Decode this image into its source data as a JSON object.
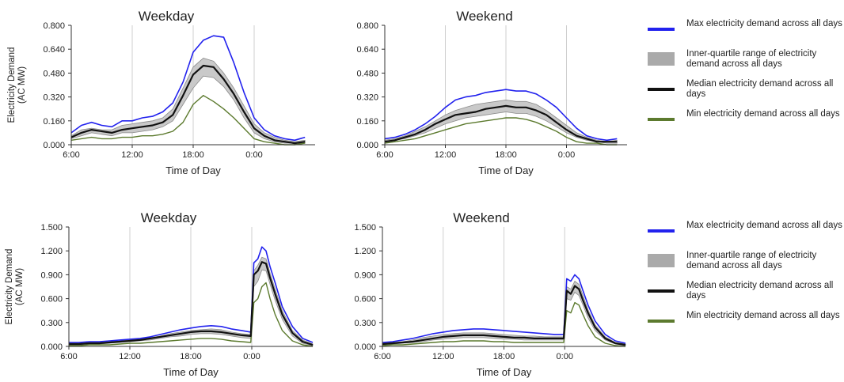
{
  "colors": {
    "max": "#2222ee",
    "iqr": "#c9c9c9",
    "iqr_edge": "#8a8a8a",
    "median": "#111111",
    "min": "#5c7a2e",
    "grid": "#cfcfcf"
  },
  "chart_data": [
    {
      "type": "area",
      "title": "Weekday",
      "ylabel": "Electricity Demand (AC MW)",
      "xlabel": "Time of Day",
      "x_ticks": [
        "6:00",
        "12:00",
        "18:00",
        "0:00"
      ],
      "x_hours": [
        6,
        7,
        8,
        9,
        10,
        11,
        12,
        13,
        14,
        15,
        16,
        17,
        18,
        19,
        20,
        21,
        22,
        23,
        24,
        25,
        26,
        27,
        28,
        29
      ],
      "xlim": [
        6,
        30
      ],
      "ylim": [
        0,
        0.8
      ],
      "y_ticks": [
        "0.000",
        "0.160",
        "0.320",
        "0.480",
        "0.640",
        "0.800"
      ],
      "grid": "vertical at 12:00, 18:00, 0:00",
      "series": [
        {
          "name": "Max electricity demand across all days",
          "values": [
            0.08,
            0.13,
            0.15,
            0.13,
            0.12,
            0.16,
            0.16,
            0.18,
            0.19,
            0.22,
            0.28,
            0.42,
            0.62,
            0.7,
            0.73,
            0.72,
            0.55,
            0.35,
            0.18,
            0.1,
            0.06,
            0.04,
            0.03,
            0.05
          ]
        },
        {
          "name": "Inner-quartile range upper",
          "values": [
            0.06,
            0.1,
            0.11,
            0.1,
            0.1,
            0.13,
            0.14,
            0.15,
            0.16,
            0.18,
            0.24,
            0.38,
            0.52,
            0.58,
            0.56,
            0.48,
            0.38,
            0.26,
            0.14,
            0.08,
            0.05,
            0.03,
            0.02,
            0.03
          ]
        },
        {
          "name": "Median electricity demand across all days",
          "values": [
            0.05,
            0.08,
            0.1,
            0.09,
            0.08,
            0.1,
            0.11,
            0.12,
            0.13,
            0.15,
            0.2,
            0.33,
            0.47,
            0.53,
            0.52,
            0.44,
            0.34,
            0.22,
            0.11,
            0.06,
            0.03,
            0.02,
            0.01,
            0.02
          ]
        },
        {
          "name": "Inner-quartile range lower",
          "values": [
            0.04,
            0.06,
            0.08,
            0.07,
            0.06,
            0.08,
            0.08,
            0.09,
            0.1,
            0.12,
            0.16,
            0.27,
            0.38,
            0.46,
            0.45,
            0.39,
            0.3,
            0.18,
            0.08,
            0.04,
            0.02,
            0.01,
            0.01,
            0.01
          ]
        },
        {
          "name": "Min electricity demand across all days",
          "values": [
            0.03,
            0.04,
            0.05,
            0.04,
            0.04,
            0.05,
            0.05,
            0.06,
            0.06,
            0.07,
            0.09,
            0.15,
            0.27,
            0.33,
            0.29,
            0.24,
            0.18,
            0.11,
            0.04,
            0.02,
            0.01,
            0.0,
            0.0,
            0.01
          ]
        }
      ]
    },
    {
      "type": "area",
      "title": "Weekend",
      "ylabel": "",
      "xlabel": "Time of Day",
      "x_ticks": [
        "6:00",
        "12:00",
        "18:00",
        "0:00"
      ],
      "x_hours": [
        6,
        7,
        8,
        9,
        10,
        11,
        12,
        13,
        14,
        15,
        16,
        17,
        18,
        19,
        20,
        21,
        22,
        23,
        24,
        25,
        26,
        27,
        28,
        29
      ],
      "xlim": [
        6,
        30
      ],
      "ylim": [
        0,
        0.8
      ],
      "y_ticks": [
        "0.000",
        "0.160",
        "0.320",
        "0.480",
        "0.640",
        "0.800"
      ],
      "grid": "vertical at 12:00, 18:00, 0:00",
      "series": [
        {
          "name": "Max electricity demand across all days",
          "values": [
            0.04,
            0.05,
            0.07,
            0.1,
            0.14,
            0.19,
            0.25,
            0.3,
            0.32,
            0.33,
            0.35,
            0.36,
            0.37,
            0.36,
            0.36,
            0.34,
            0.3,
            0.25,
            0.18,
            0.11,
            0.06,
            0.04,
            0.03,
            0.04
          ]
        },
        {
          "name": "Inner-quartile range upper",
          "values": [
            0.03,
            0.04,
            0.06,
            0.09,
            0.12,
            0.16,
            0.2,
            0.23,
            0.25,
            0.27,
            0.28,
            0.29,
            0.3,
            0.29,
            0.29,
            0.27,
            0.23,
            0.18,
            0.13,
            0.08,
            0.05,
            0.03,
            0.02,
            0.03
          ]
        },
        {
          "name": "Median electricity demand across all days",
          "values": [
            0.02,
            0.03,
            0.05,
            0.07,
            0.1,
            0.14,
            0.17,
            0.2,
            0.21,
            0.22,
            0.24,
            0.25,
            0.26,
            0.25,
            0.25,
            0.23,
            0.2,
            0.15,
            0.1,
            0.06,
            0.04,
            0.02,
            0.02,
            0.02
          ]
        },
        {
          "name": "Inner-quartile range lower",
          "values": [
            0.02,
            0.03,
            0.04,
            0.06,
            0.08,
            0.11,
            0.14,
            0.16,
            0.18,
            0.19,
            0.2,
            0.21,
            0.22,
            0.21,
            0.21,
            0.19,
            0.16,
            0.12,
            0.08,
            0.05,
            0.03,
            0.02,
            0.01,
            0.01
          ]
        },
        {
          "name": "Min electricity demand across all days",
          "values": [
            0.01,
            0.02,
            0.03,
            0.04,
            0.06,
            0.08,
            0.1,
            0.12,
            0.14,
            0.15,
            0.16,
            0.17,
            0.18,
            0.18,
            0.17,
            0.15,
            0.12,
            0.09,
            0.05,
            0.02,
            0.01,
            0.01,
            0.0,
            0.0
          ]
        }
      ]
    },
    {
      "type": "area",
      "title": "Weekday",
      "ylabel": "Electricity Demand (AC MW)",
      "xlabel": "Time of Day",
      "x_ticks": [
        "6:00",
        "12:00",
        "18:00",
        "0:00"
      ],
      "x_hours": [
        6,
        7,
        8,
        9,
        10,
        11,
        12,
        13,
        14,
        15,
        16,
        17,
        18,
        19,
        20,
        21,
        22,
        23,
        23.9,
        24.2,
        24.6,
        25,
        25.4,
        25.8,
        26.3,
        27,
        28,
        29,
        30
      ],
      "xlim": [
        6,
        30
      ],
      "ylim": [
        0,
        1.5
      ],
      "y_ticks": [
        "0.000",
        "0.300",
        "0.600",
        "0.900",
        "1.200",
        "1.500"
      ],
      "grid": "vertical at 12:00, 18:00, 0:00",
      "series": [
        {
          "name": "Max electricity demand across all days",
          "values": [
            0.05,
            0.05,
            0.06,
            0.06,
            0.07,
            0.08,
            0.09,
            0.1,
            0.12,
            0.15,
            0.18,
            0.21,
            0.23,
            0.25,
            0.26,
            0.25,
            0.22,
            0.2,
            0.18,
            1.05,
            1.1,
            1.25,
            1.2,
            1.0,
            0.8,
            0.5,
            0.25,
            0.1,
            0.05
          ]
        },
        {
          "name": "Inner-quartile range upper",
          "values": [
            0.04,
            0.04,
            0.05,
            0.05,
            0.06,
            0.07,
            0.08,
            0.09,
            0.11,
            0.13,
            0.16,
            0.18,
            0.2,
            0.21,
            0.22,
            0.21,
            0.18,
            0.16,
            0.15,
            0.95,
            1.02,
            1.12,
            1.1,
            0.92,
            0.72,
            0.45,
            0.2,
            0.08,
            0.03
          ]
        },
        {
          "name": "Median electricity demand across all days",
          "values": [
            0.03,
            0.03,
            0.04,
            0.04,
            0.05,
            0.06,
            0.07,
            0.08,
            0.1,
            0.12,
            0.14,
            0.16,
            0.18,
            0.19,
            0.19,
            0.18,
            0.16,
            0.14,
            0.13,
            0.9,
            0.95,
            1.06,
            1.04,
            0.86,
            0.66,
            0.4,
            0.17,
            0.06,
            0.02
          ]
        },
        {
          "name": "Inner-quartile range lower",
          "values": [
            0.02,
            0.02,
            0.03,
            0.03,
            0.04,
            0.05,
            0.06,
            0.07,
            0.08,
            0.1,
            0.12,
            0.13,
            0.15,
            0.16,
            0.16,
            0.15,
            0.13,
            0.11,
            0.1,
            0.75,
            0.82,
            0.96,
            0.95,
            0.78,
            0.58,
            0.34,
            0.13,
            0.04,
            0.01
          ]
        },
        {
          "name": "Min electricity demand across all days",
          "values": [
            0.01,
            0.01,
            0.02,
            0.02,
            0.02,
            0.03,
            0.04,
            0.04,
            0.05,
            0.06,
            0.07,
            0.08,
            0.09,
            0.1,
            0.1,
            0.09,
            0.07,
            0.06,
            0.05,
            0.55,
            0.6,
            0.75,
            0.8,
            0.6,
            0.4,
            0.2,
            0.07,
            0.02,
            0.0
          ]
        }
      ]
    },
    {
      "type": "area",
      "title": "Weekend",
      "ylabel": "",
      "xlabel": "Time of Day",
      "x_ticks": [
        "6:00",
        "12:00",
        "18:00",
        "0:00"
      ],
      "x_hours": [
        6,
        7,
        8,
        9,
        10,
        11,
        12,
        13,
        14,
        15,
        16,
        17,
        18,
        19,
        20,
        21,
        22,
        23,
        23.9,
        24.2,
        24.6,
        25,
        25.4,
        25.8,
        26.3,
        27,
        28,
        29,
        30
      ],
      "xlim": [
        6,
        30
      ],
      "ylim": [
        0,
        1.5
      ],
      "y_ticks": [
        "0.000",
        "0.300",
        "0.600",
        "0.900",
        "1.200",
        "1.500"
      ],
      "grid": "vertical at 12:00, 18:00, 0:00",
      "series": [
        {
          "name": "Max electricity demand across all days",
          "values": [
            0.05,
            0.06,
            0.08,
            0.1,
            0.13,
            0.16,
            0.18,
            0.2,
            0.21,
            0.22,
            0.22,
            0.21,
            0.2,
            0.19,
            0.18,
            0.17,
            0.16,
            0.15,
            0.15,
            0.85,
            0.82,
            0.9,
            0.85,
            0.7,
            0.52,
            0.32,
            0.15,
            0.07,
            0.04
          ]
        },
        {
          "name": "Inner-quartile range upper",
          "values": [
            0.04,
            0.05,
            0.06,
            0.08,
            0.11,
            0.13,
            0.15,
            0.16,
            0.17,
            0.17,
            0.17,
            0.16,
            0.15,
            0.14,
            0.13,
            0.13,
            0.12,
            0.12,
            0.12,
            0.75,
            0.72,
            0.82,
            0.78,
            0.64,
            0.46,
            0.27,
            0.12,
            0.05,
            0.03
          ]
        },
        {
          "name": "Median electricity demand across all days",
          "values": [
            0.03,
            0.04,
            0.05,
            0.06,
            0.08,
            0.1,
            0.12,
            0.13,
            0.14,
            0.14,
            0.14,
            0.13,
            0.12,
            0.11,
            0.11,
            0.1,
            0.1,
            0.1,
            0.1,
            0.7,
            0.66,
            0.76,
            0.72,
            0.58,
            0.42,
            0.24,
            0.1,
            0.04,
            0.02
          ]
        },
        {
          "name": "Inner-quartile range lower",
          "values": [
            0.02,
            0.03,
            0.04,
            0.05,
            0.06,
            0.08,
            0.09,
            0.1,
            0.11,
            0.11,
            0.11,
            0.1,
            0.09,
            0.09,
            0.08,
            0.08,
            0.08,
            0.08,
            0.08,
            0.6,
            0.58,
            0.68,
            0.64,
            0.52,
            0.36,
            0.2,
            0.08,
            0.03,
            0.01
          ]
        },
        {
          "name": "Min electricity demand across all days",
          "values": [
            0.01,
            0.02,
            0.02,
            0.03,
            0.04,
            0.05,
            0.06,
            0.06,
            0.07,
            0.07,
            0.07,
            0.06,
            0.06,
            0.05,
            0.05,
            0.05,
            0.05,
            0.05,
            0.05,
            0.45,
            0.42,
            0.55,
            0.52,
            0.4,
            0.26,
            0.12,
            0.04,
            0.01,
            0.0
          ]
        }
      ]
    }
  ],
  "legends": [
    {
      "items": [
        {
          "label": "Max electricity demand across all days",
          "kind": "line",
          "color": "#2222ee"
        },
        {
          "label": "Inner-quartile range of electricity demand across all days",
          "kind": "box",
          "color": "#aaaaaa"
        },
        {
          "label": "Median electricity demand across all days",
          "kind": "line",
          "color": "#111111"
        },
        {
          "label": "Min electricity demand across all days",
          "kind": "line",
          "color": "#5c7a2e"
        }
      ]
    },
    {
      "items": [
        {
          "label": "Max electricity demand across all days",
          "kind": "line",
          "color": "#2222ee"
        },
        {
          "label": "Inner-quartile range of electricity demand across all days",
          "kind": "box",
          "color": "#aaaaaa"
        },
        {
          "label": "Median electricity demand across all days",
          "kind": "line",
          "color": "#111111"
        },
        {
          "label": "Min electricity demand across all days",
          "kind": "line",
          "color": "#5c7a2e"
        }
      ]
    }
  ]
}
